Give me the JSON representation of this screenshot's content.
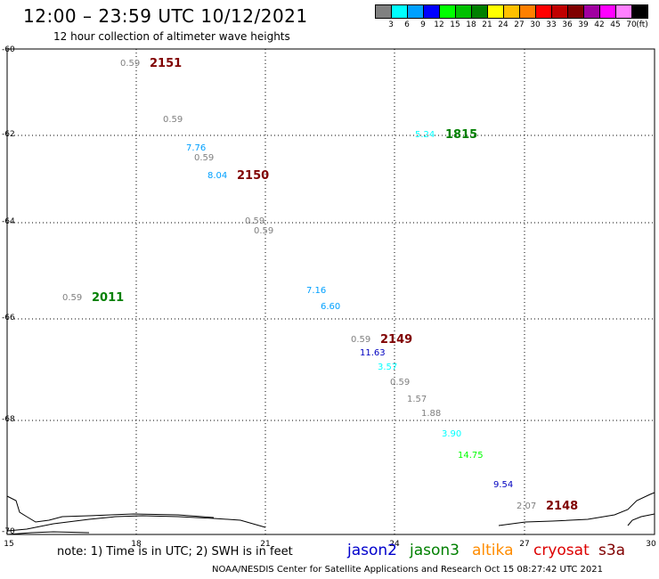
{
  "header": {
    "title": "12:00 – 23:59 UTC 10/12/2021",
    "subtitle": "12 hour collection of altimeter wave heights"
  },
  "scale": {
    "colors": [
      "#808080",
      "#00ffff",
      "#00a0ff",
      "#0000ff",
      "#00ff00",
      "#00c000",
      "#008000",
      "#ffff00",
      "#ffc000",
      "#ff8000",
      "#ff0000",
      "#c00000",
      "#800000",
      "#a000a0",
      "#ff00ff",
      "#ff80ff",
      "#000000"
    ],
    "labels": [
      "3",
      "6",
      "9",
      "12",
      "15",
      "18",
      "21",
      "24",
      "27",
      "30",
      "33",
      "36",
      "39",
      "42",
      "45",
      "70"
    ],
    "unit": "(ft)"
  },
  "axes": {
    "y_labels": [
      "-60",
      "-62",
      "-64",
      "-66",
      "-68",
      "-70"
    ],
    "x_labels": [
      "15",
      "18",
      "21",
      "24",
      "27",
      "30"
    ]
  },
  "observations": [
    {
      "text": "0.59",
      "color": "#808080"
    },
    {
      "text": "0.59",
      "color": "#808080"
    },
    {
      "text": "7.76",
      "color": "#00a0ff"
    },
    {
      "text": "0.59",
      "color": "#808080"
    },
    {
      "text": "8.04",
      "color": "#00a0ff"
    },
    {
      "text": "0.59",
      "color": "#808080"
    },
    {
      "text": "0.59",
      "color": "#808080"
    },
    {
      "text": "5.24",
      "color": "#00ffff"
    },
    {
      "text": "0.59",
      "color": "#808080"
    },
    {
      "text": "7.16",
      "color": "#00a0ff"
    },
    {
      "text": "6.60",
      "color": "#00a0ff"
    },
    {
      "text": "0.59",
      "color": "#808080"
    },
    {
      "text": "11.63",
      "color": "#0000c0"
    },
    {
      "text": "3.57",
      "color": "#00ffff"
    },
    {
      "text": "0.59",
      "color": "#808080"
    },
    {
      "text": "1.57",
      "color": "#808080"
    },
    {
      "text": "1.88",
      "color": "#808080"
    },
    {
      "text": "3.90",
      "color": "#00ffff"
    },
    {
      "text": "14.75",
      "color": "#00ff00"
    },
    {
      "text": "9.54",
      "color": "#0000c0"
    },
    {
      "text": "2.07",
      "color": "#808080"
    }
  ],
  "passes": [
    {
      "text": "2151",
      "color": "#800000"
    },
    {
      "text": "1815",
      "color": "#008000"
    },
    {
      "text": "2150",
      "color": "#800000"
    },
    {
      "text": "2011",
      "color": "#008000"
    },
    {
      "text": "2149",
      "color": "#800000"
    },
    {
      "text": "2148",
      "color": "#800000"
    }
  ],
  "note": "note: 1) Time is in UTC; 2) SWH is in feet",
  "legend": [
    {
      "name": "jason2",
      "color": "#0000cc"
    },
    {
      "name": "jason3",
      "color": "#008000"
    },
    {
      "name": "altika",
      "color": "#ff8c00"
    },
    {
      "name": "cryosat",
      "color": "#dd0000"
    },
    {
      "name": "s3a",
      "color": "#800000"
    }
  ],
  "footer": "NOAA/NESDIS Center for Satellite Applications and Research    Oct 15 08:27:42 UTC 2021"
}
